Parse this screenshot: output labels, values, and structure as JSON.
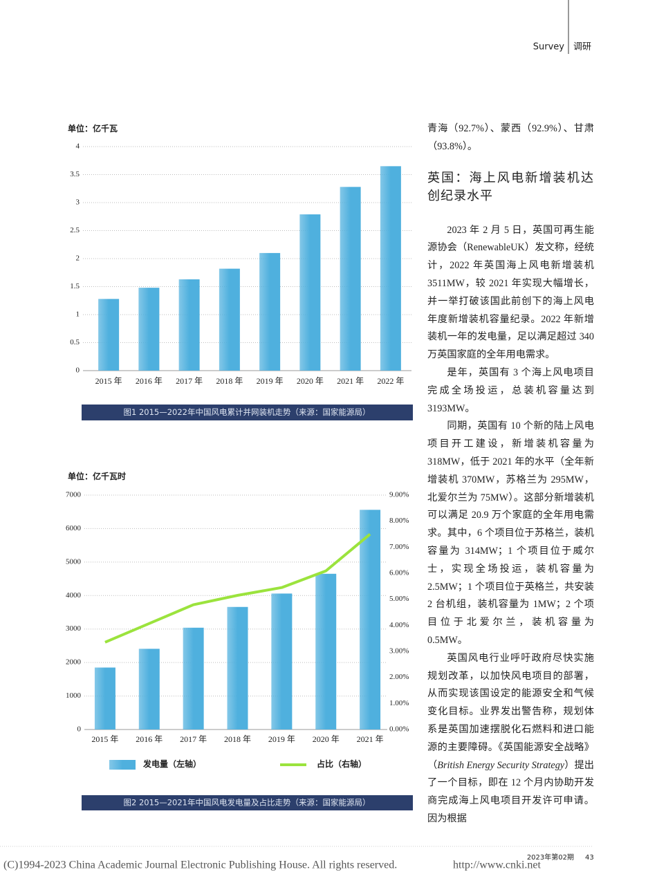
{
  "header": {
    "section_en": "Survey",
    "section_cn": "调研"
  },
  "chart_data": [
    {
      "type": "bar",
      "y_label": "单位：亿千瓦",
      "categories": [
        "2015 年",
        "2016 年",
        "2017 年",
        "2018 年",
        "2019 年",
        "2020 年",
        "2021 年",
        "2022 年"
      ],
      "values": [
        1.28,
        1.48,
        1.63,
        1.82,
        2.1,
        2.79,
        3.28,
        3.65
      ],
      "color": "#4fb0de",
      "ylim": [
        0,
        4
      ],
      "yticks": [
        0,
        0.5,
        1,
        1.5,
        2,
        2.5,
        3,
        3.5,
        4
      ],
      "grid": true,
      "caption": "图1 2015—2022年中国风电累计并网装机走势（来源：国家能源局）"
    },
    {
      "type": "combo",
      "y_label": "单位：亿千瓦时",
      "categories": [
        "2015 年",
        "2016 年",
        "2017 年",
        "2018 年",
        "2019 年",
        "2020 年",
        "2021 年"
      ],
      "series": [
        {
          "name": "发电量（左轴）",
          "color": "#4fb0de",
          "type": "bar",
          "values": [
            1850,
            2410,
            3040,
            3660,
            4060,
            4650,
            6560
          ]
        },
        {
          "name": "占比（右轴）",
          "color": "#9be33d",
          "type": "line",
          "axis": "y2",
          "values": [
            3.35,
            4.07,
            4.79,
            5.15,
            5.45,
            6.09,
            7.5
          ]
        }
      ],
      "ylim": [
        0,
        7000
      ],
      "yticks": [
        0,
        1000,
        2000,
        3000,
        4000,
        5000,
        6000,
        7000
      ],
      "y2lim": [
        0,
        9
      ],
      "y2ticks": [
        {
          "value": 0,
          "label": "0.00%"
        },
        {
          "value": 1,
          "label": "1.00%"
        },
        {
          "value": 2,
          "label": "2.00%"
        },
        {
          "value": 3,
          "label": "3.00%"
        },
        {
          "value": 4,
          "label": "4.00%"
        },
        {
          "value": 5,
          "label": "5.00%"
        },
        {
          "value": 6,
          "label": "6.00%"
        },
        {
          "value": 7,
          "label": "7.00%"
        },
        {
          "value": 8,
          "label": "8.00%"
        },
        {
          "value": 9,
          "label": "9.00%"
        }
      ],
      "grid": true,
      "caption": "图2 2015—2021年中国风电发电量及占比走势（来源：国家能源局）"
    }
  ],
  "article": {
    "lead": "青海（92.7%）、蒙西（92.9%）、甘肃（93.8%）。",
    "heading": "英国：海上风电新增装机达创纪录水平",
    "paragraphs": [
      "2023 年 2 月 5 日，英国可再生能源协会（RenewableUK）发文称，经统计，2022 年英国海上风电新增装机 3511MW，较 2021 年实现大幅增长，并一举打破该国此前创下的海上风电年度新增装机容量纪录。2022 年新增装机一年的发电量，足以满足超过 340 万英国家庭的全年用电需求。",
      "是年，英国有 3 个海上风电项目完成全场投运，总装机容量达到 3193MW。",
      "同期，英国有 10 个新的陆上风电项目开工建设，新增装机容量为 318MW，低于 2021 年的水平（全年新增装机 370MW，苏格兰为 295MW，北爱尔兰为 75MW）。这部分新增装机可以满足 20.9 万个家庭的全年用电需求。其中，6 个项目位于苏格兰，装机容量为 314MW；1 个项目位于威尔士，实现全场投运，装机容量为 2.5MW；1 个项目位于英格兰，共安装 2 台机组，装机容量为 1MW；2 个项目位于北爱尔兰，装机容量为 0.5MW。",
      [
        "英国风电行业呼吁政府尽快实施规划改革，以加快风电项目的部署，从而实现该国设定的能源安全和气候变化目标。业界发出警告称，规划体系是英国加速摆脱化石燃料和进口能源的主要障碍。《英国能源安全战略》（",
        "British Energy Security Strategy",
        "）提出了一个目标，即在 12 个月内协助开发商完成海上风电项目开发许可申请。因为根据"
      ]
    ]
  },
  "footer": {
    "issue": "2023年第02期",
    "page": "43",
    "copyright": "(C)1994-2023 China Academic Journal Electronic Publishing House. All rights reserved.",
    "url": "http://www.cnki.net"
  }
}
